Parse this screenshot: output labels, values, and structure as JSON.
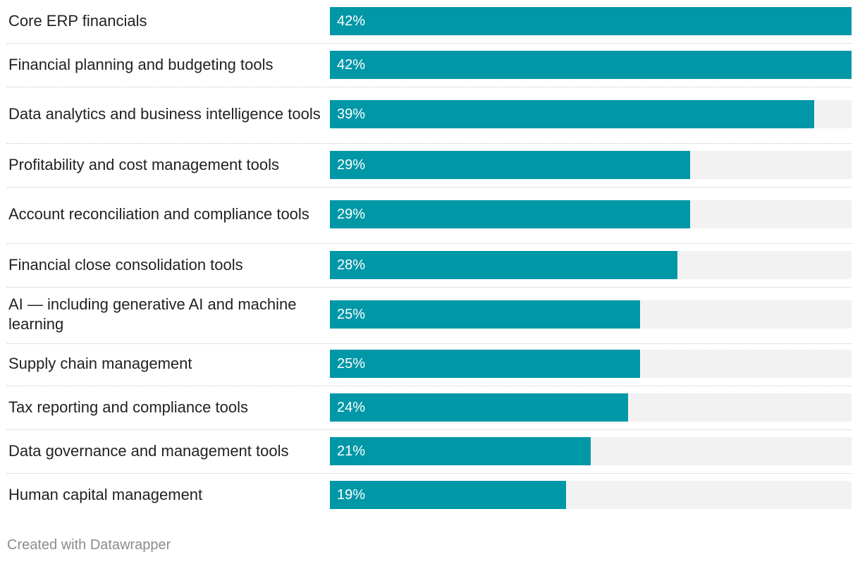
{
  "chart_data": {
    "type": "bar",
    "orientation": "horizontal",
    "title": "",
    "xlabel": "",
    "ylabel": "",
    "xlim": [
      0,
      42
    ],
    "value_suffix": "%",
    "bar_color": "#0097a7",
    "track_color": "#f2f2f2",
    "categories": [
      "Core ERP financials",
      "Financial planning and budgeting tools",
      "Data analytics and business intelligence tools",
      "Profitability and cost management tools",
      "Account reconciliation and compliance tools",
      "Financial close consolidation tools",
      "AI — including generative AI and machine learning",
      "Supply chain management",
      "Tax reporting and compliance tools",
      "Data governance and management tools",
      "Human capital management"
    ],
    "values": [
      42,
      42,
      39,
      29,
      29,
      28,
      25,
      25,
      24,
      21,
      19
    ]
  },
  "footer": {
    "credit": "Created with Datawrapper"
  }
}
